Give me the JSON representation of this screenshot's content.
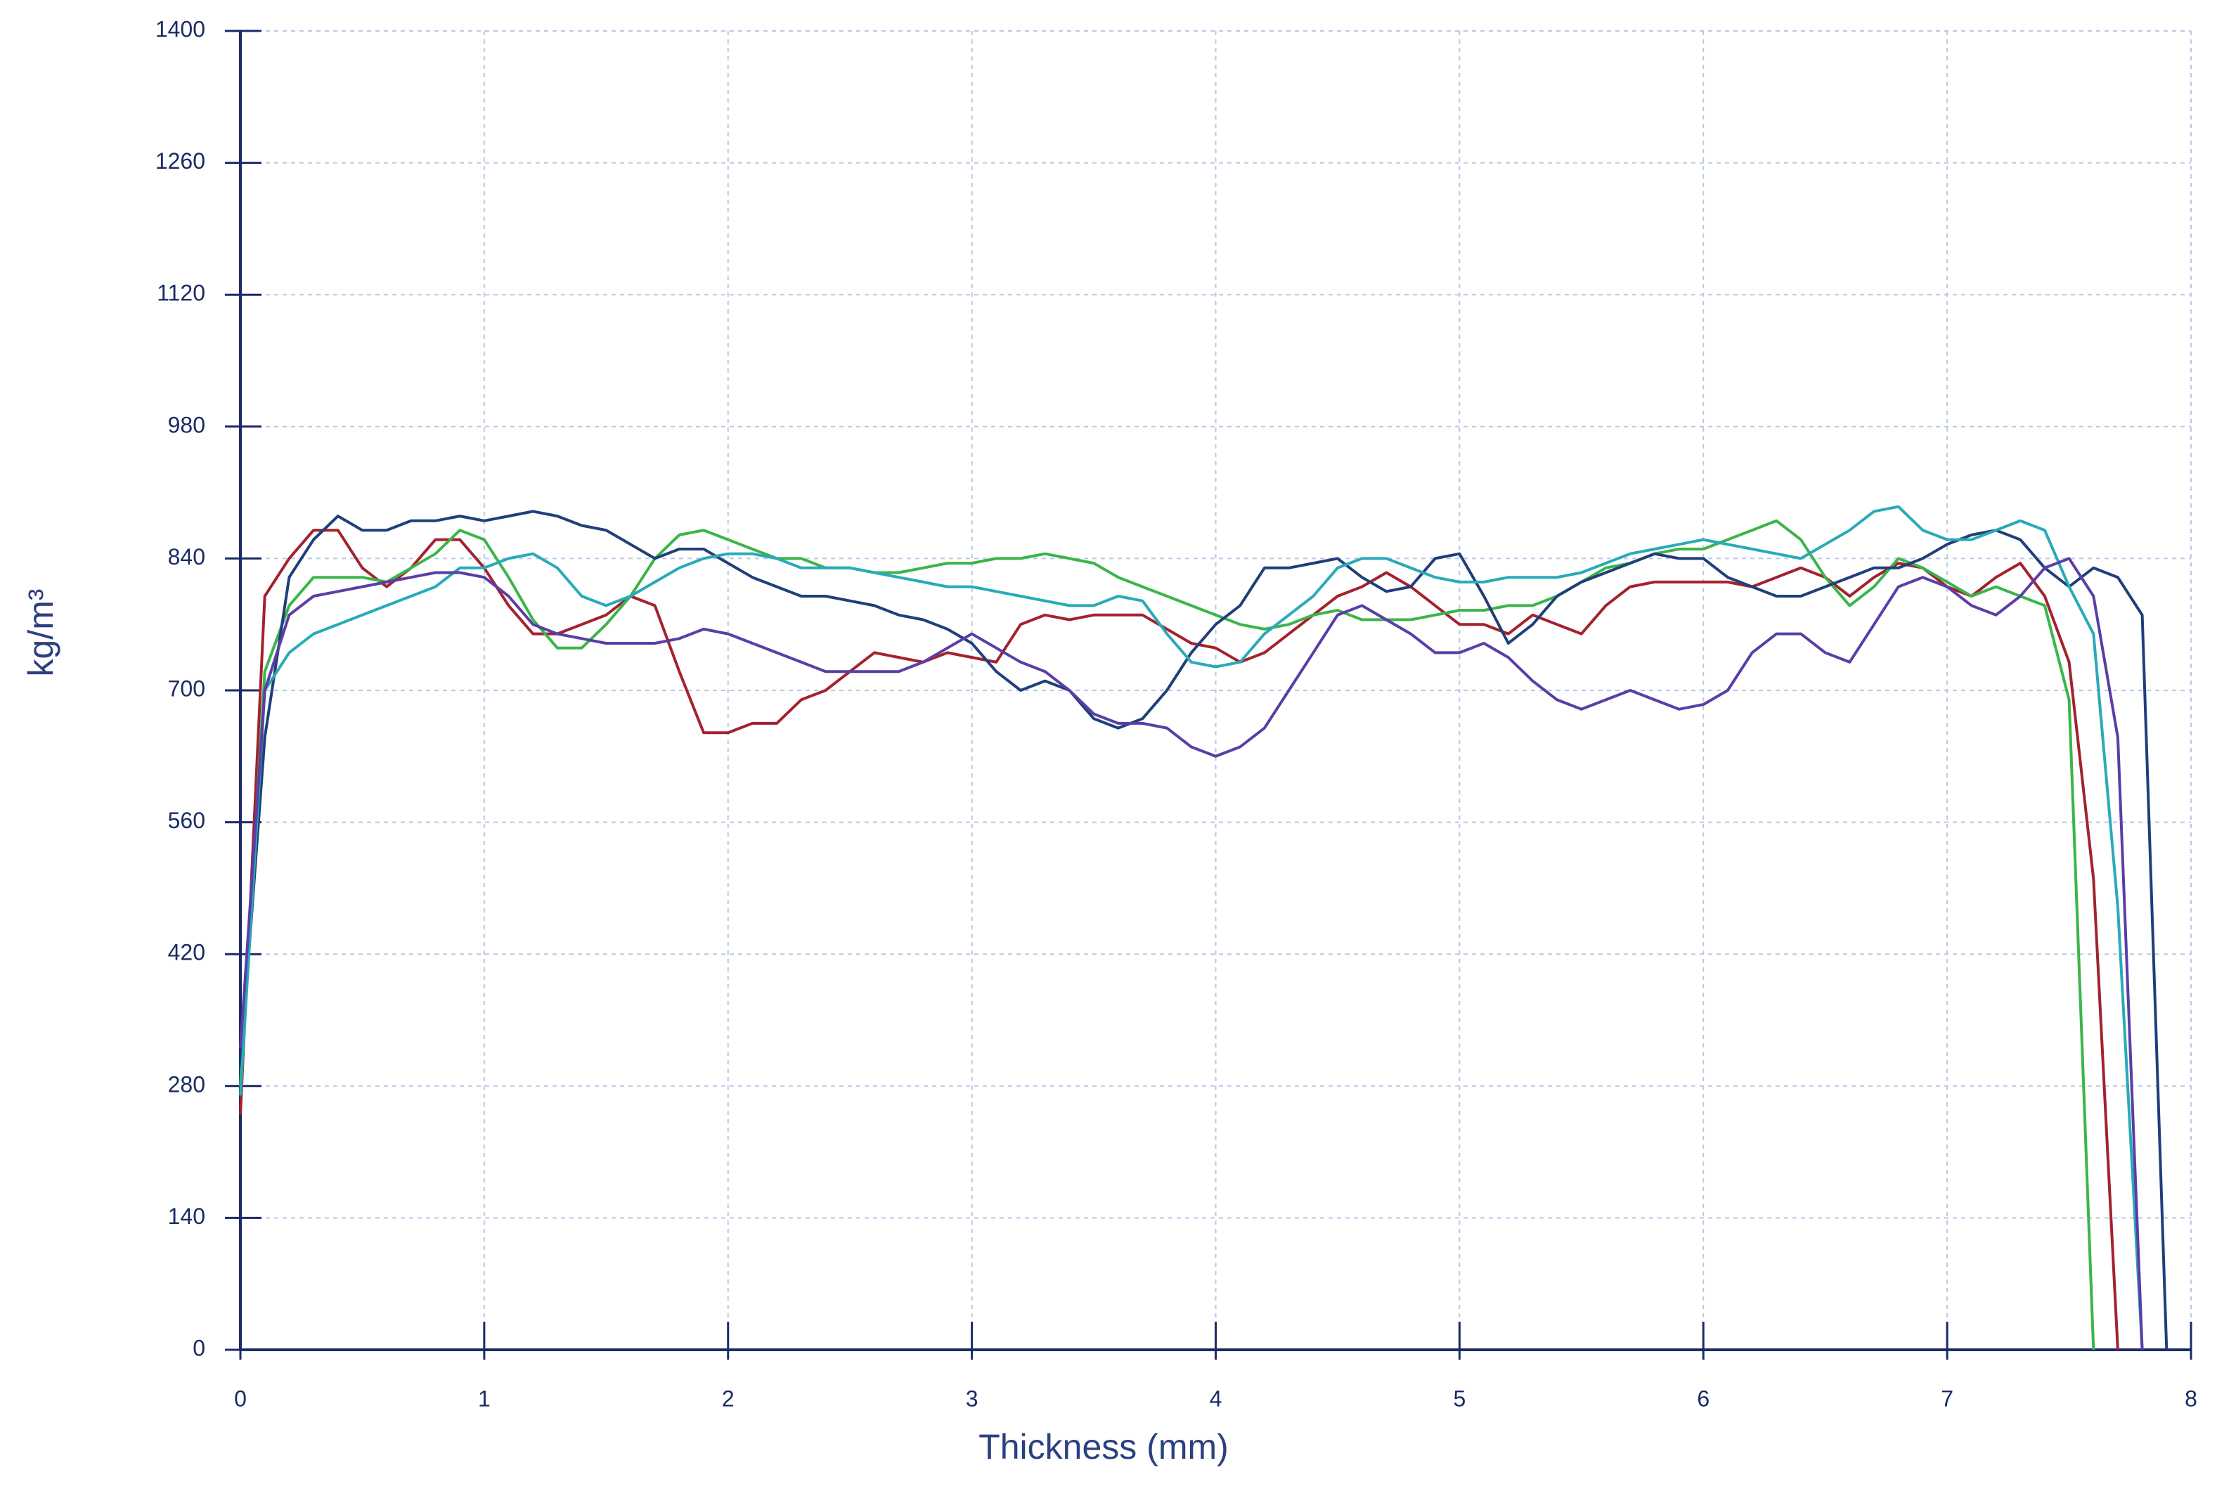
{
  "chart_data": {
    "type": "line",
    "xlabel": "Thickness (mm)",
    "ylabel": "kg/m³",
    "x": [
      0,
      0.1,
      0.2,
      0.3,
      0.4,
      0.5,
      0.6,
      0.7,
      0.8,
      0.9,
      1,
      1.1,
      1.2,
      1.3,
      1.4,
      1.5,
      1.6,
      1.7,
      1.8,
      1.9,
      2,
      2.1,
      2.2,
      2.3,
      2.4,
      2.5,
      2.6,
      2.7,
      2.8,
      2.9,
      3,
      3.1,
      3.2,
      3.3,
      3.4,
      3.5,
      3.6,
      3.7,
      3.8,
      3.9,
      4,
      4.1,
      4.2,
      4.3,
      4.4,
      4.5,
      4.6,
      4.7,
      4.8,
      4.9,
      5,
      5.1,
      5.2,
      5.3,
      5.4,
      5.5,
      5.6,
      5.7,
      5.8,
      5.9,
      6,
      6.1,
      6.2,
      6.3,
      6.4,
      6.5,
      6.6,
      6.7,
      6.8,
      6.9,
      7,
      7.1,
      7.2,
      7.3,
      7.4,
      7.5,
      7.6,
      7.7,
      7.8,
      7.9,
      8
    ],
    "series": [
      {
        "color": "#a3222e",
        "values": [
          250,
          800,
          840,
          870,
          870,
          830,
          810,
          830,
          860,
          860,
          830,
          790,
          760,
          760,
          770,
          780,
          800,
          790,
          720,
          655,
          655,
          665,
          665,
          690,
          700,
          720,
          740,
          735,
          730,
          740,
          735,
          730,
          770,
          780,
          775,
          780,
          780,
          780,
          765,
          750,
          745,
          730,
          740,
          760,
          780,
          800,
          810,
          825,
          810,
          790,
          770,
          770,
          760,
          780,
          770,
          760,
          790,
          810,
          815,
          815,
          815,
          815,
          810,
          820,
          830,
          820,
          800,
          820,
          835,
          830,
          810,
          800,
          820,
          835,
          800,
          730,
          500,
          0,
          null,
          null,
          null
        ]
      },
      {
        "color": "#3bb54a",
        "values": [
          280,
          720,
          790,
          820,
          820,
          820,
          815,
          830,
          845,
          870,
          860,
          820,
          775,
          745,
          745,
          770,
          800,
          840,
          865,
          870,
          860,
          850,
          840,
          840,
          830,
          830,
          825,
          825,
          830,
          835,
          835,
          840,
          840,
          845,
          840,
          835,
          820,
          810,
          800,
          790,
          780,
          770,
          765,
          770,
          780,
          785,
          775,
          775,
          775,
          780,
          785,
          785,
          790,
          790,
          800,
          815,
          830,
          835,
          845,
          850,
          850,
          860,
          870,
          880,
          860,
          820,
          790,
          810,
          840,
          830,
          815,
          800,
          810,
          800,
          790,
          690,
          0,
          null,
          null,
          null,
          null
        ]
      },
      {
        "color": "#1f3f7a",
        "values": [
          300,
          650,
          820,
          860,
          885,
          870,
          870,
          880,
          880,
          885,
          880,
          885,
          890,
          885,
          875,
          870,
          855,
          840,
          850,
          850,
          835,
          820,
          810,
          800,
          800,
          795,
          790,
          780,
          775,
          765,
          750,
          720,
          700,
          710,
          700,
          670,
          660,
          670,
          700,
          740,
          770,
          790,
          830,
          830,
          835,
          840,
          820,
          805,
          810,
          840,
          845,
          800,
          750,
          770,
          800,
          815,
          825,
          835,
          845,
          840,
          840,
          820,
          810,
          800,
          800,
          810,
          820,
          830,
          830,
          840,
          855,
          865,
          870,
          860,
          830,
          810,
          830,
          820,
          780,
          0,
          null
        ]
      },
      {
        "color": "#2aaab8",
        "values": [
          270,
          700,
          740,
          760,
          770,
          780,
          790,
          800,
          810,
          830,
          830,
          840,
          845,
          830,
          800,
          790,
          800,
          815,
          830,
          840,
          845,
          845,
          840,
          830,
          830,
          830,
          825,
          820,
          815,
          810,
          810,
          805,
          800,
          795,
          790,
          790,
          800,
          795,
          760,
          730,
          725,
          730,
          760,
          780,
          800,
          830,
          840,
          840,
          830,
          820,
          815,
          815,
          820,
          820,
          820,
          825,
          835,
          845,
          850,
          855,
          860,
          855,
          850,
          845,
          840,
          855,
          870,
          890,
          895,
          870,
          860,
          860,
          870,
          880,
          870,
          810,
          760,
          470,
          0,
          null,
          null
        ]
      },
      {
        "color": "#5a3ea6",
        "values": [
          320,
          700,
          780,
          800,
          805,
          810,
          815,
          820,
          825,
          825,
          820,
          800,
          770,
          760,
          755,
          750,
          750,
          750,
          755,
          765,
          760,
          750,
          740,
          730,
          720,
          720,
          720,
          720,
          730,
          745,
          760,
          745,
          730,
          720,
          700,
          675,
          665,
          665,
          660,
          640,
          630,
          640,
          660,
          700,
          740,
          780,
          790,
          775,
          760,
          740,
          740,
          750,
          735,
          710,
          690,
          680,
          690,
          700,
          690,
          680,
          685,
          700,
          740,
          760,
          760,
          740,
          730,
          770,
          810,
          820,
          810,
          790,
          780,
          800,
          830,
          840,
          800,
          650,
          0,
          null,
          null
        ]
      }
    ],
    "xlim": [
      0,
      8
    ],
    "xticks": [
      0,
      1,
      2,
      3,
      4,
      5,
      6,
      7,
      8
    ],
    "ylim": [
      0,
      1400
    ],
    "yticks": [
      0,
      140,
      280,
      420,
      560,
      700,
      840,
      980,
      1120,
      1260,
      1400
    ],
    "grid": true
  }
}
